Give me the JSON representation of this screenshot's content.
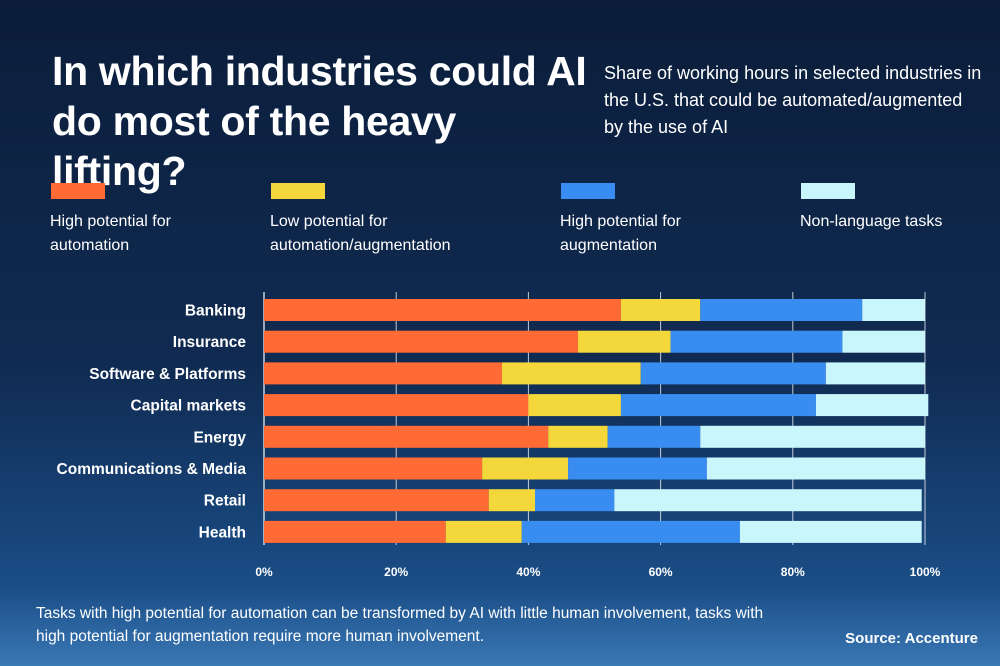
{
  "header": {
    "title": "In which industries could AI do most of the heavy lifting?",
    "subtitle": "Share of working hours in selected industries in the U.S. that could be automated/augmented by the use of AI"
  },
  "legend": [
    {
      "label": "High potential for automation",
      "color": "#ff6a35"
    },
    {
      "label": "Low potential for automation/augmentation",
      "color": "#f4d73a"
    },
    {
      "label": "High potential for augmentation",
      "color": "#3a8df0"
    },
    {
      "label": "Non-language tasks",
      "color": "#c8f6fb"
    }
  ],
  "chart_data": {
    "type": "bar",
    "orientation": "horizontal",
    "stacked": true,
    "categories": [
      "Banking",
      "Insurance",
      "Software & Platforms",
      "Capital markets",
      "Energy",
      "Communications & Media",
      "Retail",
      "Health"
    ],
    "series": [
      {
        "name": "High potential for automation",
        "color": "#ff6a35",
        "values": [
          54,
          47.5,
          36,
          40,
          43,
          33,
          34,
          27.5
        ]
      },
      {
        "name": "Low potential for automation/augmentation",
        "color": "#f4d73a",
        "values": [
          12,
          14,
          21,
          14,
          9,
          13,
          7,
          11.5
        ]
      },
      {
        "name": "High potential for augmentation",
        "color": "#3a8df0",
        "values": [
          24.5,
          26,
          28,
          29.5,
          14,
          21,
          12,
          33
        ]
      },
      {
        "name": "Non-language tasks",
        "color": "#c8f6fb",
        "values": [
          9.5,
          12.5,
          15,
          17,
          34,
          33,
          46.5,
          27.5
        ]
      }
    ],
    "xlim": [
      0,
      100
    ],
    "xticks": [
      "0%",
      "20%",
      "40%",
      "60%",
      "80%",
      "100%"
    ],
    "grid": true
  },
  "footnote": "Tasks with high potential for automation can be transformed by AI with little human involvement, tasks with high potential for augmentation require more human involvement.",
  "source": "Source: Accenture"
}
